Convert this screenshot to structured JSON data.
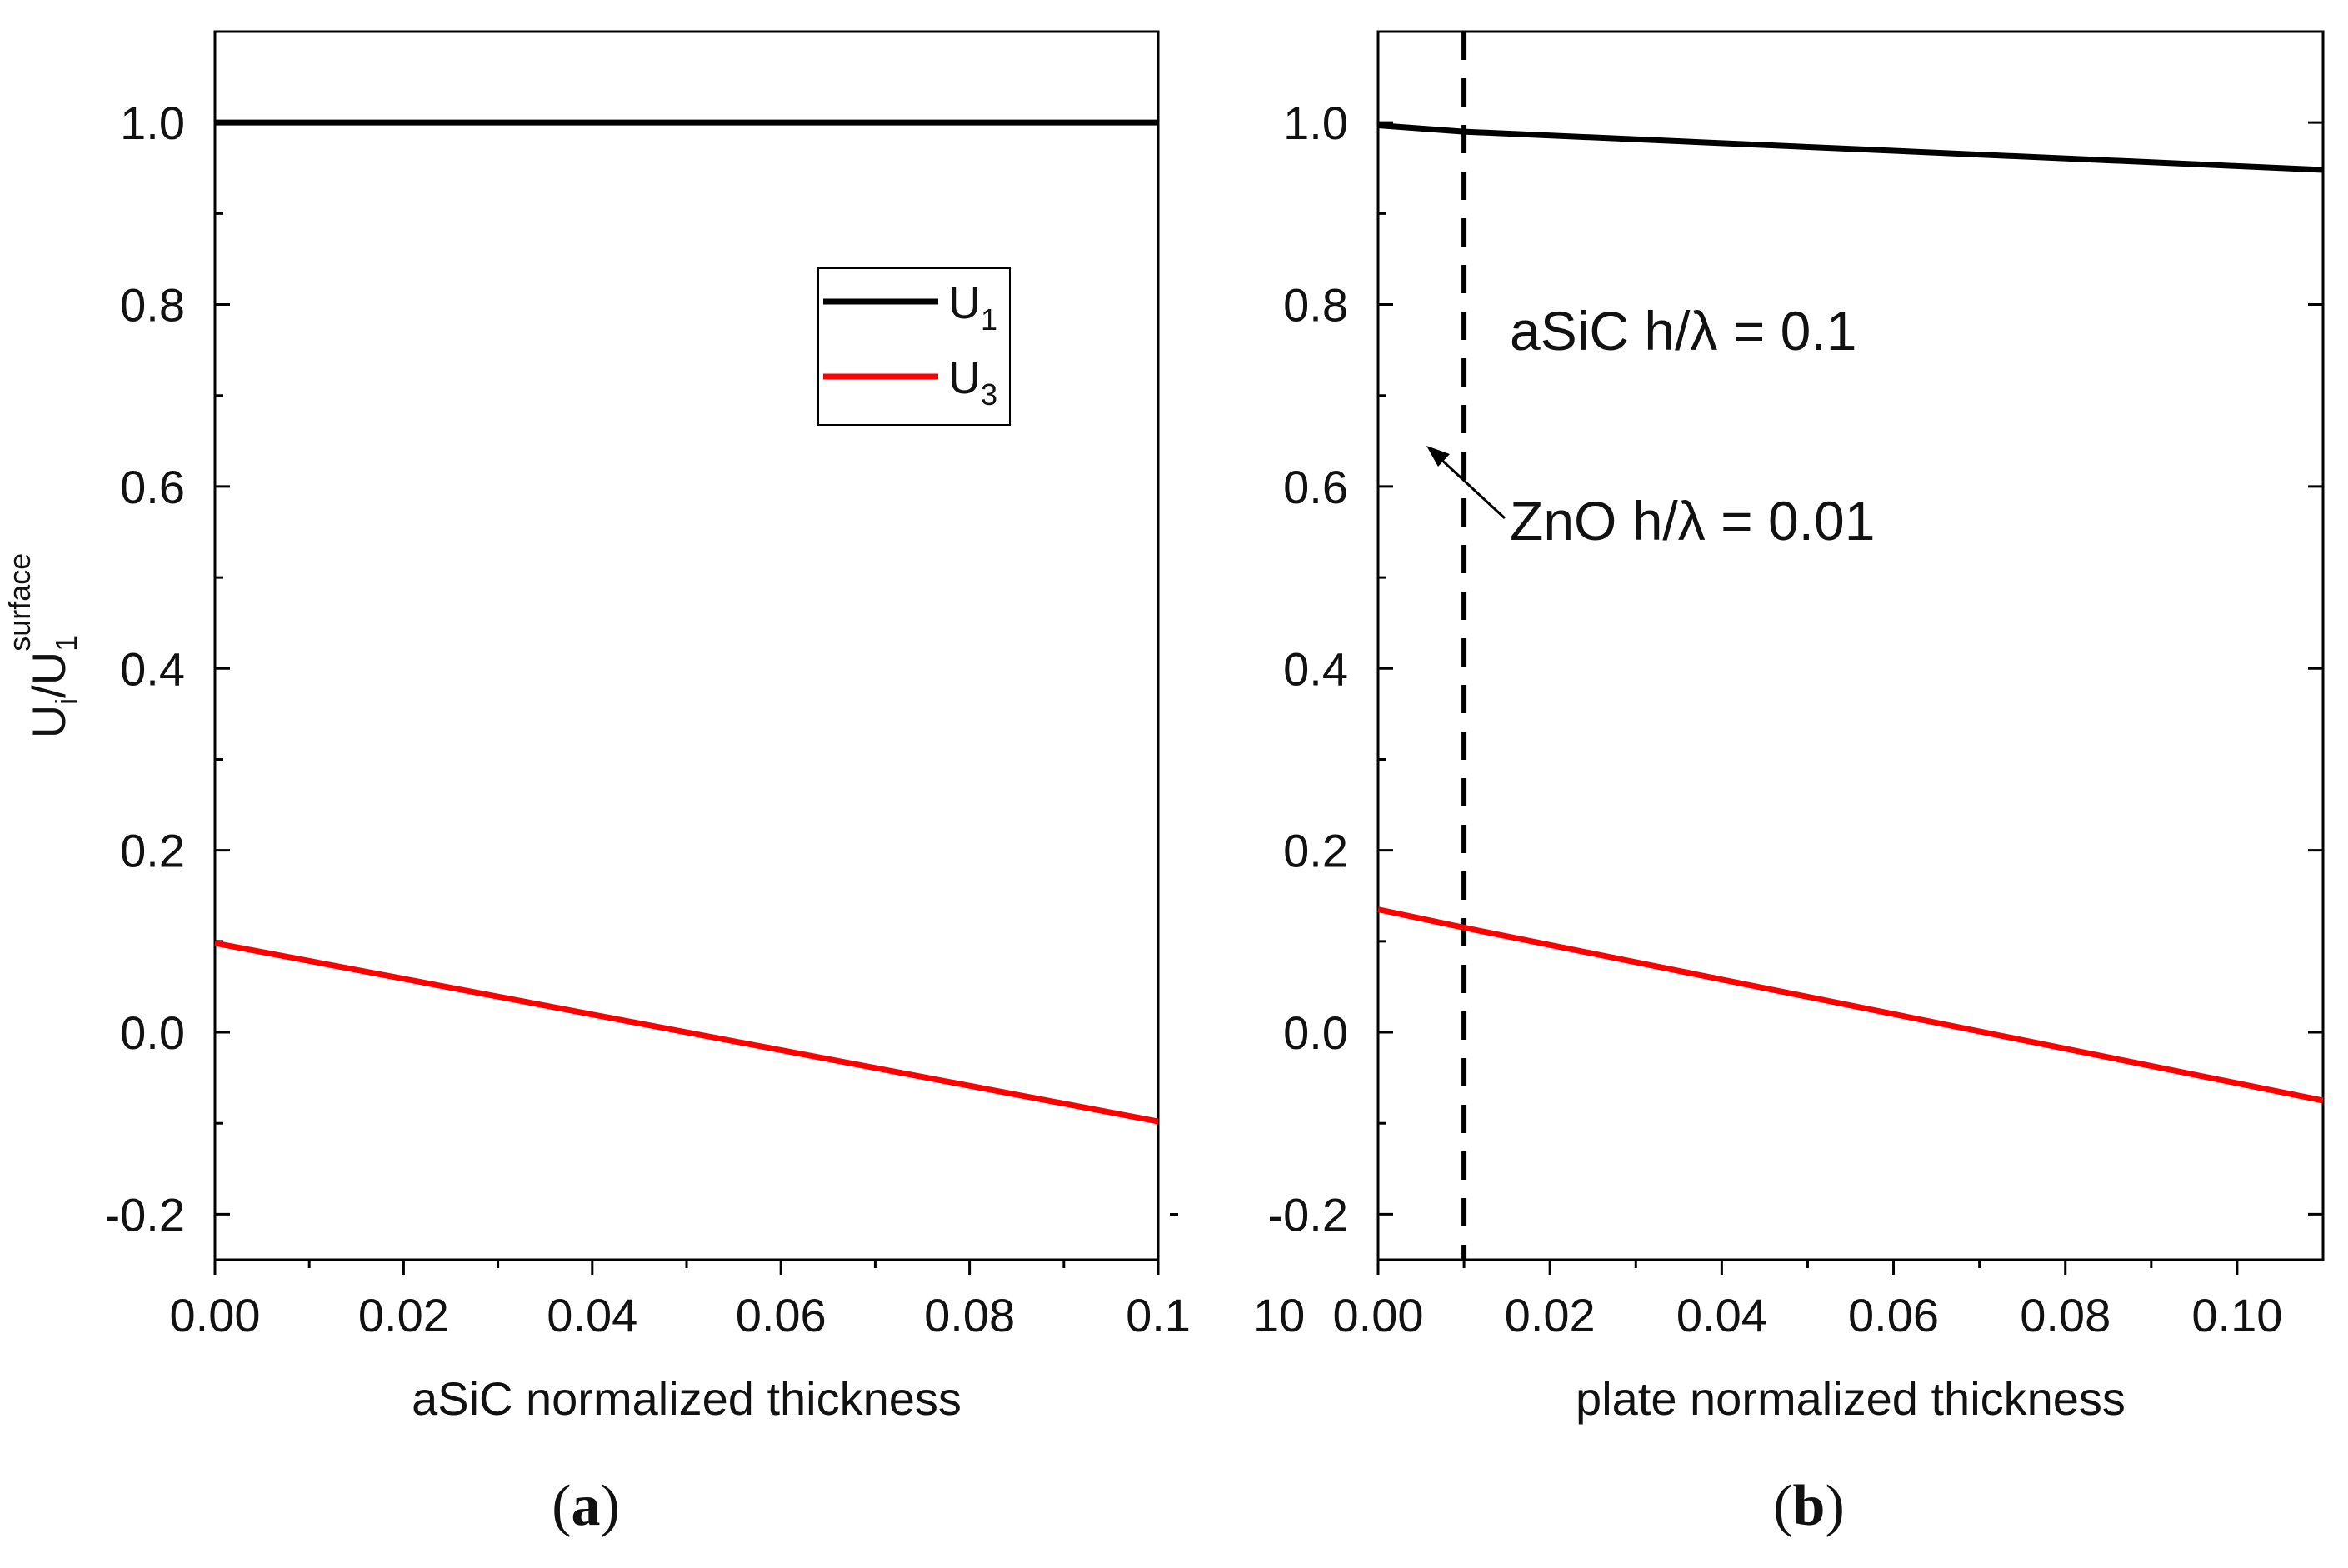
{
  "chart_data": [
    {
      "panel": "a",
      "type": "line",
      "xlabel": "aSiC normalized thickness",
      "ylabel": "U_i/U_1^surface",
      "xlim": [
        0.0,
        0.1
      ],
      "ylim": [
        -0.25,
        1.1
      ],
      "x_ticks": [
        "0.00",
        "0.02",
        "0.04",
        "0.06",
        "0.08",
        "0.1"
      ],
      "y_ticks": [
        "-0.2",
        "0.0",
        "0.2",
        "0.4",
        "0.6",
        "0.8",
        "1.0"
      ],
      "x_clip_label": "10",
      "series": [
        {
          "name": "U1",
          "color": "#000000",
          "x": [
            0.0,
            0.1
          ],
          "y": [
            1.0,
            1.0
          ]
        },
        {
          "name": "U3",
          "color": "#ff0000",
          "x": [
            0.0,
            0.1
          ],
          "y": [
            0.098,
            -0.098
          ]
        }
      ],
      "legend": {
        "position": "upper-right",
        "entries": [
          {
            "main": "U",
            "sub": "1",
            "color": "#000000"
          },
          {
            "main": "U",
            "sub": "3",
            "color": "#ff0000"
          }
        ]
      }
    },
    {
      "panel": "b",
      "type": "line",
      "xlabel": "plate normalized thickness",
      "xlim": [
        0.0,
        0.11
      ],
      "ylim": [
        -0.25,
        1.1
      ],
      "x_ticks": [
        "0.00",
        "0.02",
        "0.04",
        "0.06",
        "0.08",
        "0.10"
      ],
      "y_ticks": [
        "-0.2",
        "0.0",
        "0.2",
        "0.4",
        "0.6",
        "0.8",
        "1.0"
      ],
      "x_clip_label": "10",
      "vline": {
        "x": 0.01,
        "style": "dashed",
        "color": "#000000"
      },
      "series": [
        {
          "name": "U1",
          "color": "#000000",
          "x": [
            0.0,
            0.01,
            0.11
          ],
          "y": [
            0.997,
            0.99,
            0.948
          ]
        },
        {
          "name": "U3",
          "color": "#ff0000",
          "x": [
            0.0,
            0.01,
            0.11
          ],
          "y": [
            0.135,
            0.115,
            -0.075
          ]
        }
      ],
      "annotations": [
        {
          "text": "aSiC h/λ = 0.1"
        },
        {
          "text": "ZnO h/λ = 0.01",
          "arrow_to_x": 0.0055,
          "arrow_to_y": 0.64
        }
      ]
    }
  ],
  "figure": {
    "ylabel_main": "U",
    "ylabel_sub_i": "i",
    "ylabel_slash": "/U",
    "ylabel_sub_1": "1",
    "ylabel_sup": "surface",
    "panel_a_label_paren_open": "(",
    "panel_a_label_letter": "a",
    "panel_a_label_paren_close": ")",
    "panel_b_label_paren_open": "(",
    "panel_b_label_letter": "b",
    "panel_b_label_paren_close": ")"
  }
}
